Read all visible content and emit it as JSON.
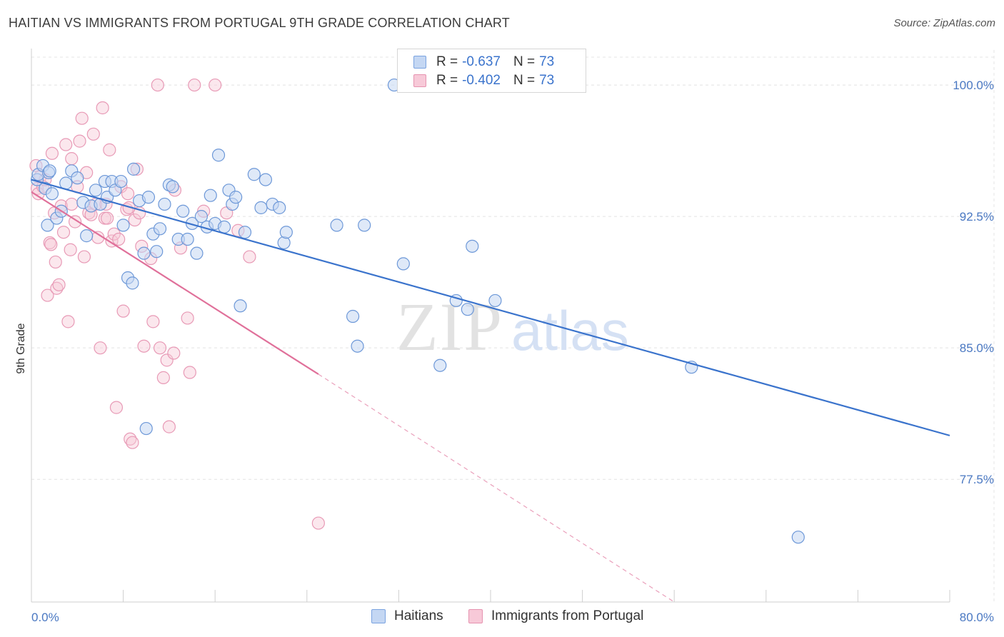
{
  "title": "HAITIAN VS IMMIGRANTS FROM PORTUGAL 9TH GRADE CORRELATION CHART",
  "source": "Source: ZipAtlas.com",
  "watermark": {
    "zip": "ZIP",
    "atlas": "atlas"
  },
  "legend_top": [
    {
      "r_label": "R =",
      "r_value": "-0.637",
      "n_label": "N =",
      "n_value": "73"
    },
    {
      "r_label": "R =",
      "r_value": "-0.402",
      "n_label": "N =",
      "n_value": "73"
    }
  ],
  "colors": {
    "haitians": "#3a73cc",
    "portugal": "#e0709a",
    "haitians_fill": "#c4d7f3",
    "portugal_fill": "#f7c9d8"
  },
  "chart_data": {
    "type": "scatter",
    "title": "HAITIAN VS IMMIGRANTS FROM PORTUGAL 9TH GRADE CORRELATION CHART",
    "xlabel": "",
    "ylabel": "9th Grade",
    "xlim": [
      0,
      80
    ],
    "ylim": [
      70.5,
      102
    ],
    "x_tick_labels": [
      "0.0%",
      "80.0%"
    ],
    "y_ticks": [
      77.5,
      85.0,
      92.5,
      100.0
    ],
    "y_tick_labels": [
      "77.5%",
      "85.0%",
      "92.5%",
      "100.0%"
    ],
    "grid": true,
    "legend": "bottom",
    "series": [
      {
        "name": "Haitians",
        "color": "#3a73cc",
        "r": -0.637,
        "n": 73,
        "trend": {
          "x0": 0,
          "y0": 94.6,
          "x1": 80,
          "y1": 80.0
        },
        "points": [
          [
            0.5,
            94.6
          ],
          [
            0.6,
            94.9
          ],
          [
            1.0,
            95.4
          ],
          [
            1.2,
            94.1
          ],
          [
            1.5,
            95.0
          ],
          [
            1.4,
            92.0
          ],
          [
            1.8,
            93.8
          ],
          [
            2.2,
            92.4
          ],
          [
            2.6,
            92.8
          ],
          [
            3.0,
            94.4
          ],
          [
            3.5,
            95.1
          ],
          [
            4.0,
            94.7
          ],
          [
            4.5,
            93.3
          ],
          [
            4.8,
            91.4
          ],
          [
            5.2,
            93.1
          ],
          [
            5.6,
            94.0
          ],
          [
            6.0,
            93.2
          ],
          [
            6.4,
            94.5
          ],
          [
            6.6,
            93.6
          ],
          [
            7.0,
            94.5
          ],
          [
            7.3,
            94.0
          ],
          [
            7.8,
            94.5
          ],
          [
            8.0,
            92.0
          ],
          [
            8.4,
            89.0
          ],
          [
            8.8,
            88.7
          ],
          [
            8.9,
            95.2
          ],
          [
            9.4,
            93.4
          ],
          [
            9.8,
            90.4
          ],
          [
            10.2,
            93.6
          ],
          [
            10.6,
            91.5
          ],
          [
            10.9,
            90.5
          ],
          [
            11.2,
            91.8
          ],
          [
            11.6,
            93.2
          ],
          [
            12.0,
            94.3
          ],
          [
            12.3,
            94.2
          ],
          [
            12.8,
            91.2
          ],
          [
            13.2,
            92.8
          ],
          [
            13.6,
            91.2
          ],
          [
            14.0,
            92.1
          ],
          [
            14.4,
            90.4
          ],
          [
            14.8,
            92.5
          ],
          [
            15.3,
            91.9
          ],
          [
            15.6,
            93.7
          ],
          [
            16.0,
            92.1
          ],
          [
            16.3,
            96.0
          ],
          [
            16.8,
            91.9
          ],
          [
            17.2,
            94.0
          ],
          [
            17.5,
            93.2
          ],
          [
            17.8,
            93.6
          ],
          [
            18.2,
            87.4
          ],
          [
            18.6,
            91.6
          ],
          [
            19.4,
            94.9
          ],
          [
            20.0,
            93.0
          ],
          [
            20.4,
            94.6
          ],
          [
            21.0,
            93.2
          ],
          [
            21.6,
            93.0
          ],
          [
            22.0,
            91.0
          ],
          [
            22.2,
            91.6
          ],
          [
            26.6,
            92.0
          ],
          [
            28.0,
            86.8
          ],
          [
            28.4,
            85.1
          ],
          [
            29.0,
            92.0
          ],
          [
            32.4,
            89.8
          ],
          [
            35.6,
            84.0
          ],
          [
            37.0,
            87.7
          ],
          [
            38.0,
            87.2
          ],
          [
            38.4,
            90.8
          ],
          [
            40.4,
            87.7
          ],
          [
            57.5,
            83.9
          ],
          [
            66.8,
            74.2
          ],
          [
            10.0,
            80.4
          ],
          [
            31.6,
            100.0
          ],
          [
            1.6,
            95.1
          ]
        ]
      },
      {
        "name": "Immigrants from Portugal",
        "color": "#e0709a",
        "r": -0.402,
        "n": 73,
        "trend": {
          "x0": 0,
          "y0": 93.9,
          "x1": 25,
          "y1": 83.5
        },
        "trend_dashed": {
          "x0": 25,
          "y0": 83.5,
          "x1": 56,
          "y1": 70.5
        },
        "points": [
          [
            0.4,
            95.4
          ],
          [
            0.5,
            94.1
          ],
          [
            0.6,
            93.8
          ],
          [
            0.8,
            94.8
          ],
          [
            1.0,
            94.2
          ],
          [
            1.2,
            94.6
          ],
          [
            1.4,
            88.0
          ],
          [
            1.6,
            91.0
          ],
          [
            1.7,
            90.9
          ],
          [
            1.8,
            96.1
          ],
          [
            2.0,
            92.7
          ],
          [
            2.1,
            89.9
          ],
          [
            2.2,
            88.4
          ],
          [
            2.4,
            88.6
          ],
          [
            2.6,
            93.1
          ],
          [
            2.8,
            91.6
          ],
          [
            3.0,
            96.6
          ],
          [
            3.2,
            86.5
          ],
          [
            3.4,
            90.6
          ],
          [
            3.5,
            95.8
          ],
          [
            3.8,
            92.2
          ],
          [
            4.0,
            94.2
          ],
          [
            4.2,
            96.8
          ],
          [
            4.4,
            98.1
          ],
          [
            4.6,
            90.2
          ],
          [
            4.8,
            95.0
          ],
          [
            5.0,
            92.7
          ],
          [
            5.2,
            92.6
          ],
          [
            5.4,
            97.2
          ],
          [
            5.6,
            93.2
          ],
          [
            5.8,
            91.3
          ],
          [
            6.0,
            85.0
          ],
          [
            6.2,
            98.7
          ],
          [
            6.4,
            92.4
          ],
          [
            6.6,
            92.4
          ],
          [
            6.8,
            96.3
          ],
          [
            7.0,
            91.1
          ],
          [
            7.2,
            91.5
          ],
          [
            7.4,
            81.6
          ],
          [
            7.6,
            91.2
          ],
          [
            7.8,
            94.2
          ],
          [
            8.0,
            87.1
          ],
          [
            8.3,
            92.9
          ],
          [
            8.4,
            93.8
          ],
          [
            8.6,
            79.8
          ],
          [
            8.8,
            79.6
          ],
          [
            9.0,
            92.3
          ],
          [
            9.2,
            95.2
          ],
          [
            9.4,
            92.7
          ],
          [
            9.6,
            90.8
          ],
          [
            9.8,
            85.1
          ],
          [
            10.4,
            90.1
          ],
          [
            10.6,
            86.5
          ],
          [
            11.0,
            100.0
          ],
          [
            11.2,
            85.0
          ],
          [
            11.5,
            83.3
          ],
          [
            11.8,
            84.3
          ],
          [
            12.0,
            80.5
          ],
          [
            12.4,
            84.7
          ],
          [
            13.0,
            90.7
          ],
          [
            13.6,
            86.7
          ],
          [
            13.8,
            83.6
          ],
          [
            14.2,
            100.0
          ],
          [
            15.0,
            92.8
          ],
          [
            16.0,
            100.0
          ],
          [
            17.0,
            92.7
          ],
          [
            18.0,
            91.7
          ],
          [
            19.0,
            90.2
          ],
          [
            25.0,
            75.0
          ],
          [
            3.5,
            93.2
          ],
          [
            6.5,
            93.2
          ],
          [
            8.5,
            93.0
          ],
          [
            12.5,
            94.0
          ]
        ]
      }
    ]
  }
}
